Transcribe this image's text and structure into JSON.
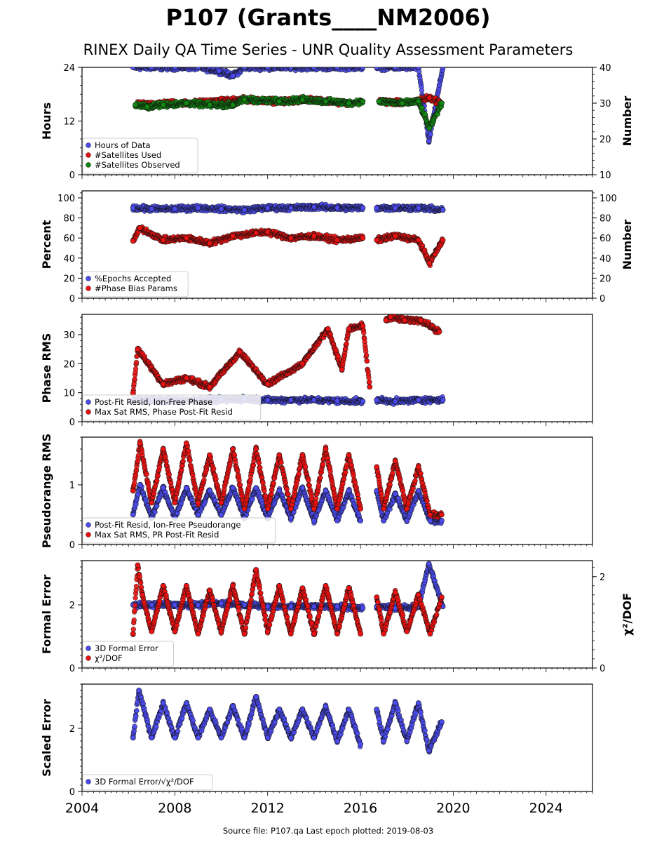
{
  "title": "P107 (Grants____NM2006)",
  "subtitle": "RINEX Daily QA Time Series - UNR Quality Assessment Parameters",
  "footer": "Source file: P107.qa Last epoch plotted: 2019-08-03",
  "colors": {
    "blue": "#4b4bf0",
    "red": "#ee1111",
    "green": "#118811"
  },
  "x_axis": {
    "range": [
      2004,
      2026
    ],
    "ticks": [
      2004,
      2008,
      2012,
      2016,
      2020,
      2024
    ]
  },
  "chart_data": [
    {
      "type": "scatter",
      "ylabel": "Hours",
      "ylabel_right": "Number",
      "ylim": [
        0,
        24
      ],
      "yticks": [
        0,
        12,
        24
      ],
      "ylim_right": [
        10,
        40
      ],
      "yticks_right": [
        10,
        20,
        30,
        40
      ],
      "legend": [
        "Hours of Data",
        "#Satellites Used",
        "#Satellites Observed"
      ],
      "series": [
        {
          "name": "Hours of Data",
          "color": "blue",
          "axis": "left",
          "x": [
            2006.2,
            2007.0,
            2008.0,
            2009.0,
            2009.9,
            2010.5,
            2011.0,
            2012.0,
            2013.0,
            2014.0,
            2015.0,
            2016.1,
            2016.7,
            2017.5,
            2018.5,
            2018.95,
            2019.55
          ],
          "y": [
            24,
            24,
            24,
            24,
            23.2,
            22.1,
            24,
            24,
            24,
            24,
            24,
            24,
            24,
            24,
            24,
            7.5,
            24
          ]
        },
        {
          "name": "#Satellites Used",
          "color": "red",
          "axis": "right",
          "x": [
            2006.3,
            2007.5,
            2008.5,
            2009.8,
            2011.0,
            2012.5,
            2014.0,
            2015.5,
            2016.8,
            2018.0,
            2018.97,
            2019.5
          ],
          "y": [
            29.5,
            30,
            30,
            30.5,
            31,
            30.5,
            31,
            30,
            30.5,
            30,
            31.5,
            30
          ]
        },
        {
          "name": "#Satellites Observed",
          "color": "green",
          "axis": "right",
          "x": [
            2006.3,
            2006.8,
            2007.5,
            2008.5,
            2009.5,
            2010.5,
            2011.0,
            2012.5,
            2013.5,
            2014.5,
            2015.5,
            2016.1,
            2016.8,
            2017.8,
            2018.5,
            2018.97,
            2019.5
          ],
          "y": [
            29.5,
            29,
            29.5,
            30,
            29.5,
            29.5,
            31,
            30.5,
            31,
            30.5,
            30,
            30.5,
            30.5,
            30,
            30.5,
            23,
            30
          ]
        }
      ]
    },
    {
      "type": "scatter",
      "ylabel": "Percent",
      "ylabel_right": "Number",
      "ylim": [
        0,
        107
      ],
      "yticks": [
        0,
        20,
        40,
        60,
        80,
        100
      ],
      "ylim_right": [
        0,
        107
      ],
      "yticks_right": [
        0,
        20,
        40,
        60,
        80,
        100
      ],
      "legend": [
        "%Epochs Accepted",
        "#Phase Bias Params"
      ],
      "series": [
        {
          "name": "%Epochs Accepted",
          "color": "blue",
          "axis": "left",
          "x": [
            2006.2,
            2007.0,
            2008.0,
            2009.0,
            2010.0,
            2011.0,
            2012.0,
            2013.0,
            2014.0,
            2015.0,
            2016.1,
            2016.7,
            2017.5,
            2018.5,
            2019.55
          ],
          "y": [
            90,
            89,
            89,
            90,
            89,
            88,
            90,
            90,
            91,
            90,
            90,
            90,
            90,
            90,
            88
          ]
        },
        {
          "name": "#Phase Bias Params",
          "color": "red",
          "axis": "right",
          "x": [
            2006.2,
            2006.5,
            2007.5,
            2008.5,
            2009.5,
            2010.5,
            2011.5,
            2012.0,
            2013.0,
            2014.0,
            2015.0,
            2016.1,
            2016.7,
            2017.5,
            2018.5,
            2018.97,
            2019.55
          ],
          "y": [
            57,
            70,
            58,
            60,
            55,
            62,
            65,
            66,
            60,
            62,
            58,
            60,
            58,
            62,
            58,
            35,
            58
          ]
        }
      ]
    },
    {
      "type": "scatter",
      "ylabel": "Phase RMS",
      "ylim": [
        0,
        37
      ],
      "yticks": [
        0,
        10,
        20,
        30
      ],
      "legend": [
        "Post-Fit Resid, Ion-Free Phase",
        "Max Sat RMS, Phase Post-Fit Resid"
      ],
      "series": [
        {
          "name": "Post-Fit Resid, Ion-Free Phase",
          "color": "blue",
          "axis": "left",
          "x": [
            2006.2,
            2007.0,
            2008.0,
            2009.0,
            2010.0,
            2011.0,
            2012.0,
            2013.0,
            2014.0,
            2015.0,
            2016.1,
            2016.7,
            2017.5,
            2018.5,
            2019.55
          ],
          "y": [
            7.5,
            7.5,
            7.2,
            7.5,
            7.5,
            7.8,
            7.5,
            7.5,
            7.5,
            7.2,
            7.0,
            7.5,
            7.0,
            7.5,
            7.5
          ]
        },
        {
          "name": "Max Sat RMS, Phase Post-Fit Resid",
          "color": "red",
          "axis": "left",
          "x": [
            2006.2,
            2006.4,
            2007.5,
            2008.5,
            2009.5,
            2010.8,
            2012.0,
            2013.5,
            2014.6,
            2015.2,
            2015.5,
            2016.1,
            2016.4,
            2017.1,
            2017.3,
            2017.9,
            2018.6,
            2019.4
          ],
          "y": [
            10,
            25,
            13,
            15,
            12,
            24,
            13,
            20,
            32,
            18,
            32,
            33,
            12,
            35,
            36,
            35,
            35,
            31
          ]
        }
      ]
    },
    {
      "type": "scatter",
      "ylabel": "Pseudorange RMS",
      "ylim": [
        0,
        1.8
      ],
      "yticks": [
        0,
        1
      ],
      "legend": [
        "Post-Fit Resid, Ion-Free Pseudorange",
        "Max Sat RMS, PR Post-Fit Resid"
      ],
      "series": [
        {
          "name": "Post-Fit Resid, Ion-Free Pseudorange",
          "color": "blue",
          "axis": "left",
          "x": [
            2006.2,
            2006.5,
            2007.0,
            2007.5,
            2008.0,
            2008.5,
            2009.0,
            2009.5,
            2010.0,
            2010.5,
            2011.0,
            2011.5,
            2012.0,
            2012.5,
            2013.0,
            2013.5,
            2014.0,
            2014.5,
            2015.0,
            2015.5,
            2016.0,
            2016.7,
            2017.0,
            2017.5,
            2018.0,
            2018.5,
            2019.0,
            2019.5
          ],
          "y": [
            0.5,
            1.0,
            0.45,
            0.95,
            0.45,
            0.95,
            0.5,
            0.9,
            0.5,
            0.95,
            0.45,
            0.95,
            0.45,
            0.9,
            0.45,
            0.95,
            0.4,
            0.9,
            0.4,
            0.9,
            0.4,
            0.9,
            0.4,
            0.85,
            0.4,
            0.9,
            0.4,
            0.4
          ]
        },
        {
          "name": "Max Sat RMS, PR Post-Fit Resid",
          "color": "red",
          "axis": "left",
          "x": [
            2006.2,
            2006.5,
            2007.0,
            2007.5,
            2008.0,
            2008.5,
            2009.0,
            2009.5,
            2010.0,
            2010.5,
            2011.0,
            2011.5,
            2012.0,
            2012.5,
            2013.0,
            2013.5,
            2014.0,
            2014.5,
            2015.0,
            2015.5,
            2016.0,
            2016.7,
            2017.0,
            2017.5,
            2018.0,
            2018.5,
            2019.0,
            2019.5
          ],
          "y": [
            0.9,
            1.7,
            0.7,
            1.6,
            0.7,
            1.7,
            0.7,
            1.5,
            0.7,
            1.6,
            0.6,
            1.6,
            0.6,
            1.5,
            0.6,
            1.5,
            0.6,
            1.6,
            0.6,
            1.5,
            0.6,
            1.3,
            0.6,
            1.4,
            0.6,
            1.3,
            0.5,
            0.5
          ]
        }
      ]
    },
    {
      "type": "scatter",
      "ylabel": "Formal Error",
      "ylabel_right": "χ²/DOF",
      "ylim": [
        0,
        3.4
      ],
      "yticks": [
        0,
        2
      ],
      "ylim_right": [
        0,
        2.35
      ],
      "yticks_right": [
        0,
        2
      ],
      "legend": [
        "3D Formal Error",
        "χ²/DOF"
      ],
      "series": [
        {
          "name": "3D Formal Error",
          "color": "blue",
          "axis": "left",
          "x": [
            2006.2,
            2007.0,
            2008.0,
            2009.0,
            2010.0,
            2011.0,
            2012.0,
            2013.0,
            2014.0,
            2015.0,
            2016.1,
            2016.7,
            2017.5,
            2018.5,
            2018.95,
            2019.55
          ],
          "y": [
            2.0,
            2.0,
            2.0,
            2.0,
            2.05,
            2.0,
            1.95,
            1.95,
            1.95,
            1.95,
            1.9,
            1.95,
            1.9,
            1.95,
            3.3,
            1.95
          ]
        },
        {
          "name": "χ²/DOF",
          "color": "red",
          "axis": "right",
          "x": [
            2006.2,
            2006.4,
            2006.6,
            2007.0,
            2007.5,
            2008.0,
            2008.5,
            2009.0,
            2009.5,
            2010.0,
            2010.5,
            2011.0,
            2011.5,
            2012.0,
            2012.5,
            2013.0,
            2013.5,
            2014.0,
            2014.5,
            2015.0,
            2015.5,
            2016.0,
            2016.7,
            2017.0,
            2017.5,
            2018.0,
            2018.5,
            2019.0,
            2019.5
          ],
          "y": [
            0.75,
            2.25,
            1.6,
            0.8,
            1.8,
            0.8,
            1.8,
            0.75,
            1.7,
            0.8,
            1.8,
            0.75,
            2.15,
            0.8,
            1.8,
            0.75,
            1.75,
            0.75,
            1.8,
            0.75,
            1.75,
            0.75,
            1.55,
            0.75,
            1.65,
            0.8,
            1.6,
            0.75,
            1.55
          ]
        }
      ]
    },
    {
      "type": "scatter",
      "ylabel": "Scaled Error",
      "ylim": [
        0,
        3.4
      ],
      "yticks": [
        0,
        2
      ],
      "legend": [
        "3D Formal Error/√χ²/DOF"
      ],
      "series": [
        {
          "name": "3D Formal Error/√χ²/DOF",
          "color": "blue",
          "axis": "left",
          "x": [
            2006.2,
            2006.45,
            2007.0,
            2007.5,
            2008.0,
            2008.5,
            2009.0,
            2009.5,
            2010.0,
            2010.5,
            2011.0,
            2011.5,
            2012.0,
            2012.5,
            2013.0,
            2013.5,
            2014.0,
            2014.5,
            2015.0,
            2015.5,
            2016.0,
            2016.7,
            2017.0,
            2017.5,
            2018.0,
            2018.5,
            2018.95,
            2019.5
          ],
          "y": [
            1.7,
            3.2,
            1.7,
            2.8,
            1.7,
            2.8,
            1.7,
            2.6,
            1.7,
            2.7,
            1.7,
            3.0,
            1.7,
            2.6,
            1.7,
            2.6,
            1.7,
            2.7,
            1.6,
            2.6,
            1.5,
            2.6,
            1.6,
            2.8,
            1.6,
            2.8,
            1.3,
            2.2
          ]
        }
      ]
    }
  ]
}
